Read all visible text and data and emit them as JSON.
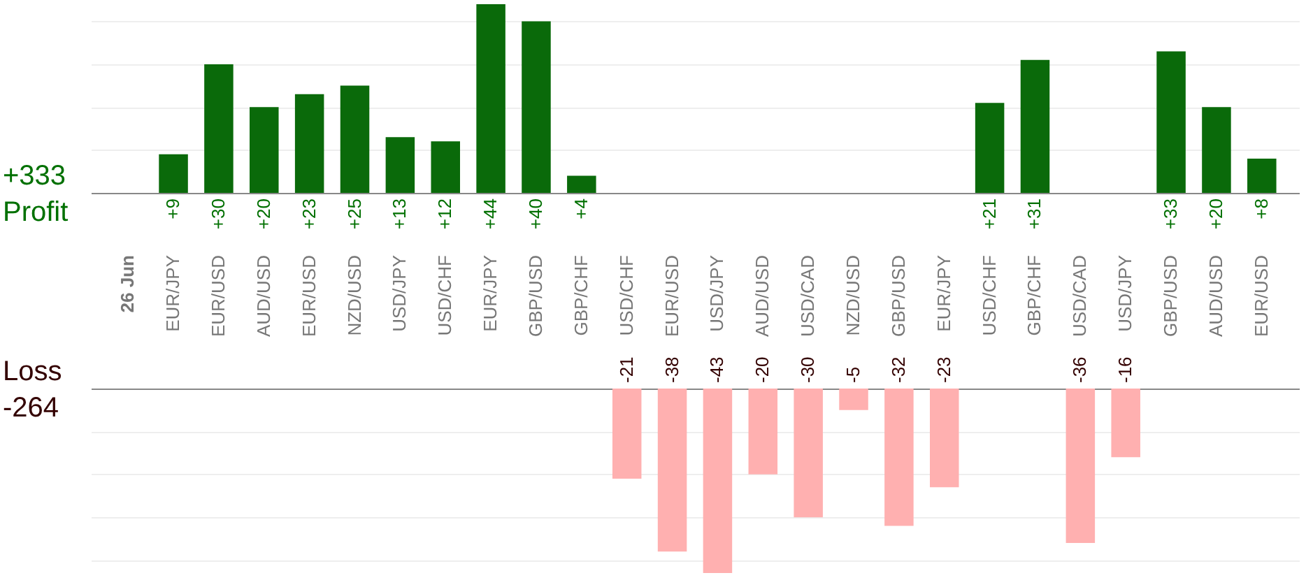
{
  "chart_data": [
    {
      "type": "bar",
      "categories": [
        "26 Jun",
        "EUR/JPY",
        "EUR/USD",
        "AUD/USD",
        "EUR/USD",
        "NZD/USD",
        "USD/JPY",
        "USD/CHF",
        "EUR/JPY",
        "GBP/USD",
        "GBP/CHF",
        "USD/CHF",
        "EUR/USD",
        "USD/JPY",
        "AUD/USD",
        "USD/CAD",
        "NZD/USD",
        "GBP/USD",
        "EUR/JPY",
        "USD/CHF",
        "GBP/CHF",
        "USD/CAD",
        "USD/JPY",
        "GBP/USD",
        "AUD/USD",
        "EUR/USD"
      ],
      "series": [
        {
          "name": "Profit",
          "color": "#0a6a0a",
          "values": [
            null,
            9,
            30,
            20,
            23,
            25,
            13,
            12,
            44,
            40,
            4,
            null,
            null,
            null,
            null,
            null,
            null,
            null,
            null,
            21,
            31,
            null,
            null,
            33,
            20,
            8
          ],
          "value_labels": [
            null,
            "+9",
            "+30",
            "+20",
            "+23",
            "+25",
            "+13",
            "+12",
            "+44",
            "+40",
            "+4",
            null,
            null,
            null,
            null,
            null,
            null,
            null,
            null,
            "+21",
            "+31",
            null,
            null,
            "+33",
            "+20",
            "+8"
          ]
        }
      ],
      "ylim": [
        0,
        44
      ],
      "grid": "y",
      "tick_labels": "x",
      "annotations": [
        "+333"
      ]
    },
    {
      "type": "bar",
      "categories": [
        "26 Jun",
        "EUR/JPY",
        "EUR/USD",
        "AUD/USD",
        "EUR/USD",
        "NZD/USD",
        "USD/JPY",
        "USD/CHF",
        "EUR/JPY",
        "GBP/USD",
        "GBP/CHF",
        "USD/CHF",
        "EUR/USD",
        "USD/JPY",
        "AUD/USD",
        "USD/CAD",
        "NZD/USD",
        "GBP/USD",
        "EUR/JPY",
        "USD/CHF",
        "GBP/CHF",
        "USD/CAD",
        "USD/JPY",
        "GBP/USD",
        "AUD/USD",
        "EUR/USD"
      ],
      "series": [
        {
          "name": "Loss",
          "color": "#ffb0b0",
          "values": [
            null,
            null,
            null,
            null,
            null,
            null,
            null,
            null,
            null,
            null,
            null,
            -21,
            -38,
            -43,
            -20,
            -30,
            -5,
            -32,
            -23,
            null,
            null,
            -36,
            -16,
            null,
            null,
            null
          ],
          "value_labels": [
            null,
            null,
            null,
            null,
            null,
            null,
            null,
            null,
            null,
            null,
            null,
            "-21",
            "-38",
            "-43",
            "-20",
            "-30",
            "-5",
            "-32",
            "-23",
            null,
            null,
            "-36",
            "-16",
            null,
            null,
            null
          ]
        }
      ],
      "ylim": [
        -43,
        0
      ],
      "grid": "y",
      "tick_labels": false,
      "annotations": [
        "-264"
      ]
    }
  ]
}
